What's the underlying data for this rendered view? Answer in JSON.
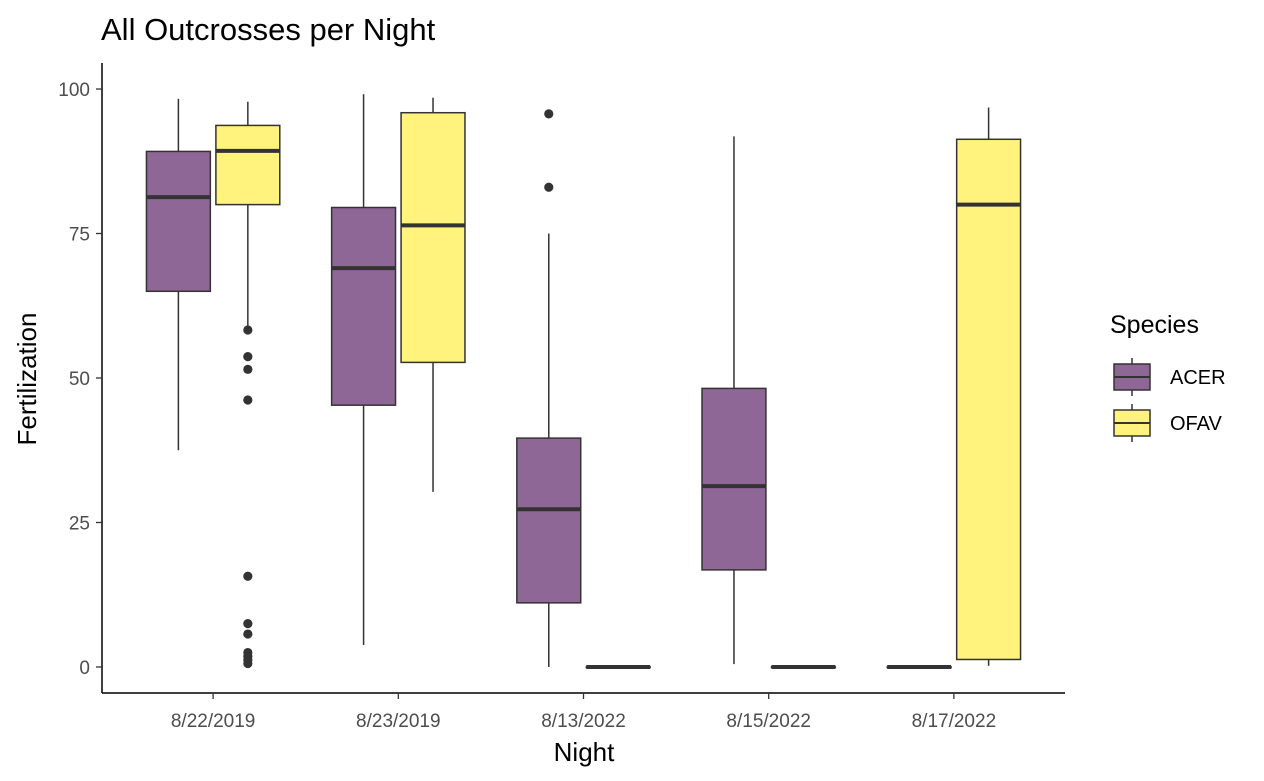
{
  "chart_data": {
    "type": "boxplot",
    "title": "All Outcrosses per Night",
    "xlabel": "Night",
    "ylabel": "Fertilization",
    "ylim": [
      -4.5,
      104.5
    ],
    "yticks": [
      0,
      25,
      50,
      75,
      100
    ],
    "categories": [
      "8/22/2019",
      "8/23/2019",
      "8/13/2022",
      "8/15/2022",
      "8/17/2022"
    ],
    "grid": false,
    "legend": {
      "title": "Species",
      "position": "right"
    },
    "series": [
      {
        "name": "ACER",
        "color": "#8f6796",
        "boxes": [
          {
            "whisker_low": 37.5,
            "q1": 65,
            "median": 81.3,
            "q3": 89.2,
            "whisker_high": 98.3,
            "outliers": []
          },
          {
            "whisker_low": 3.8,
            "q1": 45.3,
            "median": 69,
            "q3": 79.5,
            "whisker_high": 99.1,
            "outliers": []
          },
          {
            "whisker_low": 0,
            "q1": 11.1,
            "median": 27.3,
            "q3": 39.6,
            "whisker_high": 75,
            "outliers": [
              83,
              95.7
            ]
          },
          {
            "whisker_low": 0.5,
            "q1": 16.8,
            "median": 31.3,
            "q3": 48.2,
            "whisker_high": 91.8,
            "outliers": []
          },
          {
            "whisker_low": 0,
            "q1": 0,
            "median": 0,
            "q3": 0,
            "whisker_high": 0,
            "outliers": []
          }
        ]
      },
      {
        "name": "OFAV",
        "color": "#fff27d",
        "boxes": [
          {
            "whisker_low": 59,
            "q1": 80,
            "median": 89.3,
            "q3": 93.7,
            "whisker_high": 97.8,
            "outliers": [
              58.3,
              53.7,
              51.5,
              46.2,
              15.7,
              7.5,
              5.7,
              2.5,
              1.8,
              1.2,
              0.6
            ]
          },
          {
            "whisker_low": 30.3,
            "q1": 52.7,
            "median": 76.4,
            "q3": 95.9,
            "whisker_high": 98.5,
            "outliers": []
          },
          {
            "whisker_low": 0,
            "q1": 0,
            "median": 0,
            "q3": 0,
            "whisker_high": 0,
            "outliers": []
          },
          {
            "whisker_low": 0,
            "q1": 0,
            "median": 0,
            "q3": 0,
            "whisker_high": 0,
            "outliers": []
          },
          {
            "whisker_low": 0.2,
            "q1": 1.3,
            "median": 80,
            "q3": 91.3,
            "whisker_high": 96.8,
            "outliers": []
          }
        ]
      }
    ]
  }
}
